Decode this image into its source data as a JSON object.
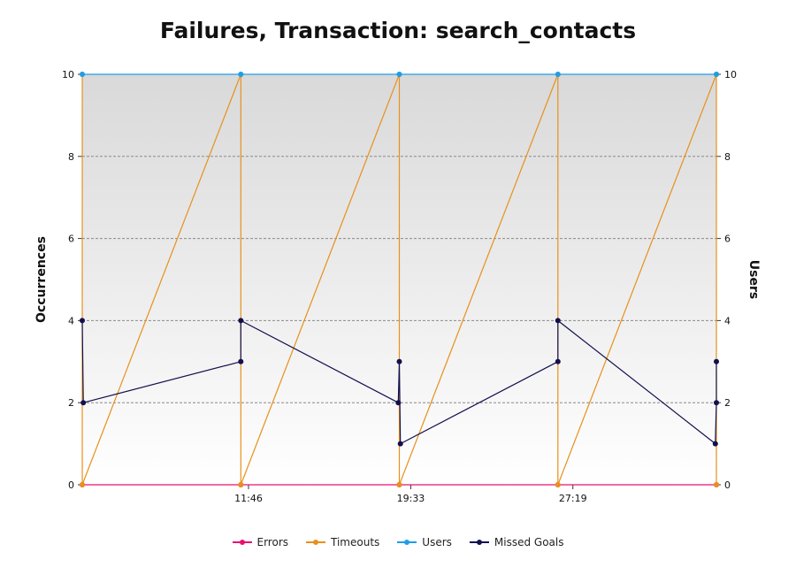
{
  "chart_data": {
    "type": "line",
    "title": "Failures, Transaction: search_contacts",
    "ylabel": "Occurrences",
    "y2label": "Users",
    "ylim": [
      0,
      10
    ],
    "y2lim": [
      0,
      10
    ],
    "yticks": [
      "0",
      "2",
      "4",
      "6",
      "8",
      "10"
    ],
    "y2ticks": [
      "0",
      "2",
      "4",
      "6",
      "8",
      "10"
    ],
    "xticks": [
      {
        "label": "11:46",
        "t": 11.77
      },
      {
        "label": "19:33",
        "t": 19.55
      },
      {
        "label": "27:19",
        "t": 27.32
      }
    ],
    "xrange": [
      3.8,
      34.2
    ],
    "grid": true,
    "legend_position": "bottom",
    "series": [
      {
        "name": "Errors",
        "color": "#e8106e",
        "x": [
          3.8,
          11.4,
          19.0,
          26.6,
          34.2
        ],
        "y": [
          0,
          0,
          0,
          0,
          0
        ]
      },
      {
        "name": "Timeouts",
        "color": "#e8901a",
        "x": [
          3.8,
          3.8,
          11.4,
          11.4,
          19.0,
          19.0,
          26.6,
          26.6,
          34.2,
          34.2
        ],
        "y": [
          10,
          0,
          10,
          0,
          10,
          0,
          10,
          0,
          10,
          0
        ]
      },
      {
        "name": "Users",
        "color": "#1e9ee8",
        "x": [
          3.8,
          11.4,
          19.0,
          26.6,
          34.2
        ],
        "y": [
          10,
          10,
          10,
          10,
          10
        ]
      },
      {
        "name": "Missed Goals",
        "color": "#12104e",
        "x": [
          3.8,
          3.85,
          11.4,
          11.4,
          18.95,
          19.0,
          19.05,
          26.6,
          26.6,
          34.15,
          34.2,
          34.2
        ],
        "y": [
          4,
          2,
          3,
          4,
          2,
          3,
          1,
          3,
          4,
          1,
          2,
          3
        ]
      }
    ]
  },
  "legend": {
    "errors": "Errors",
    "timeouts": "Timeouts",
    "users": "Users",
    "missed_goals": "Missed Goals"
  }
}
